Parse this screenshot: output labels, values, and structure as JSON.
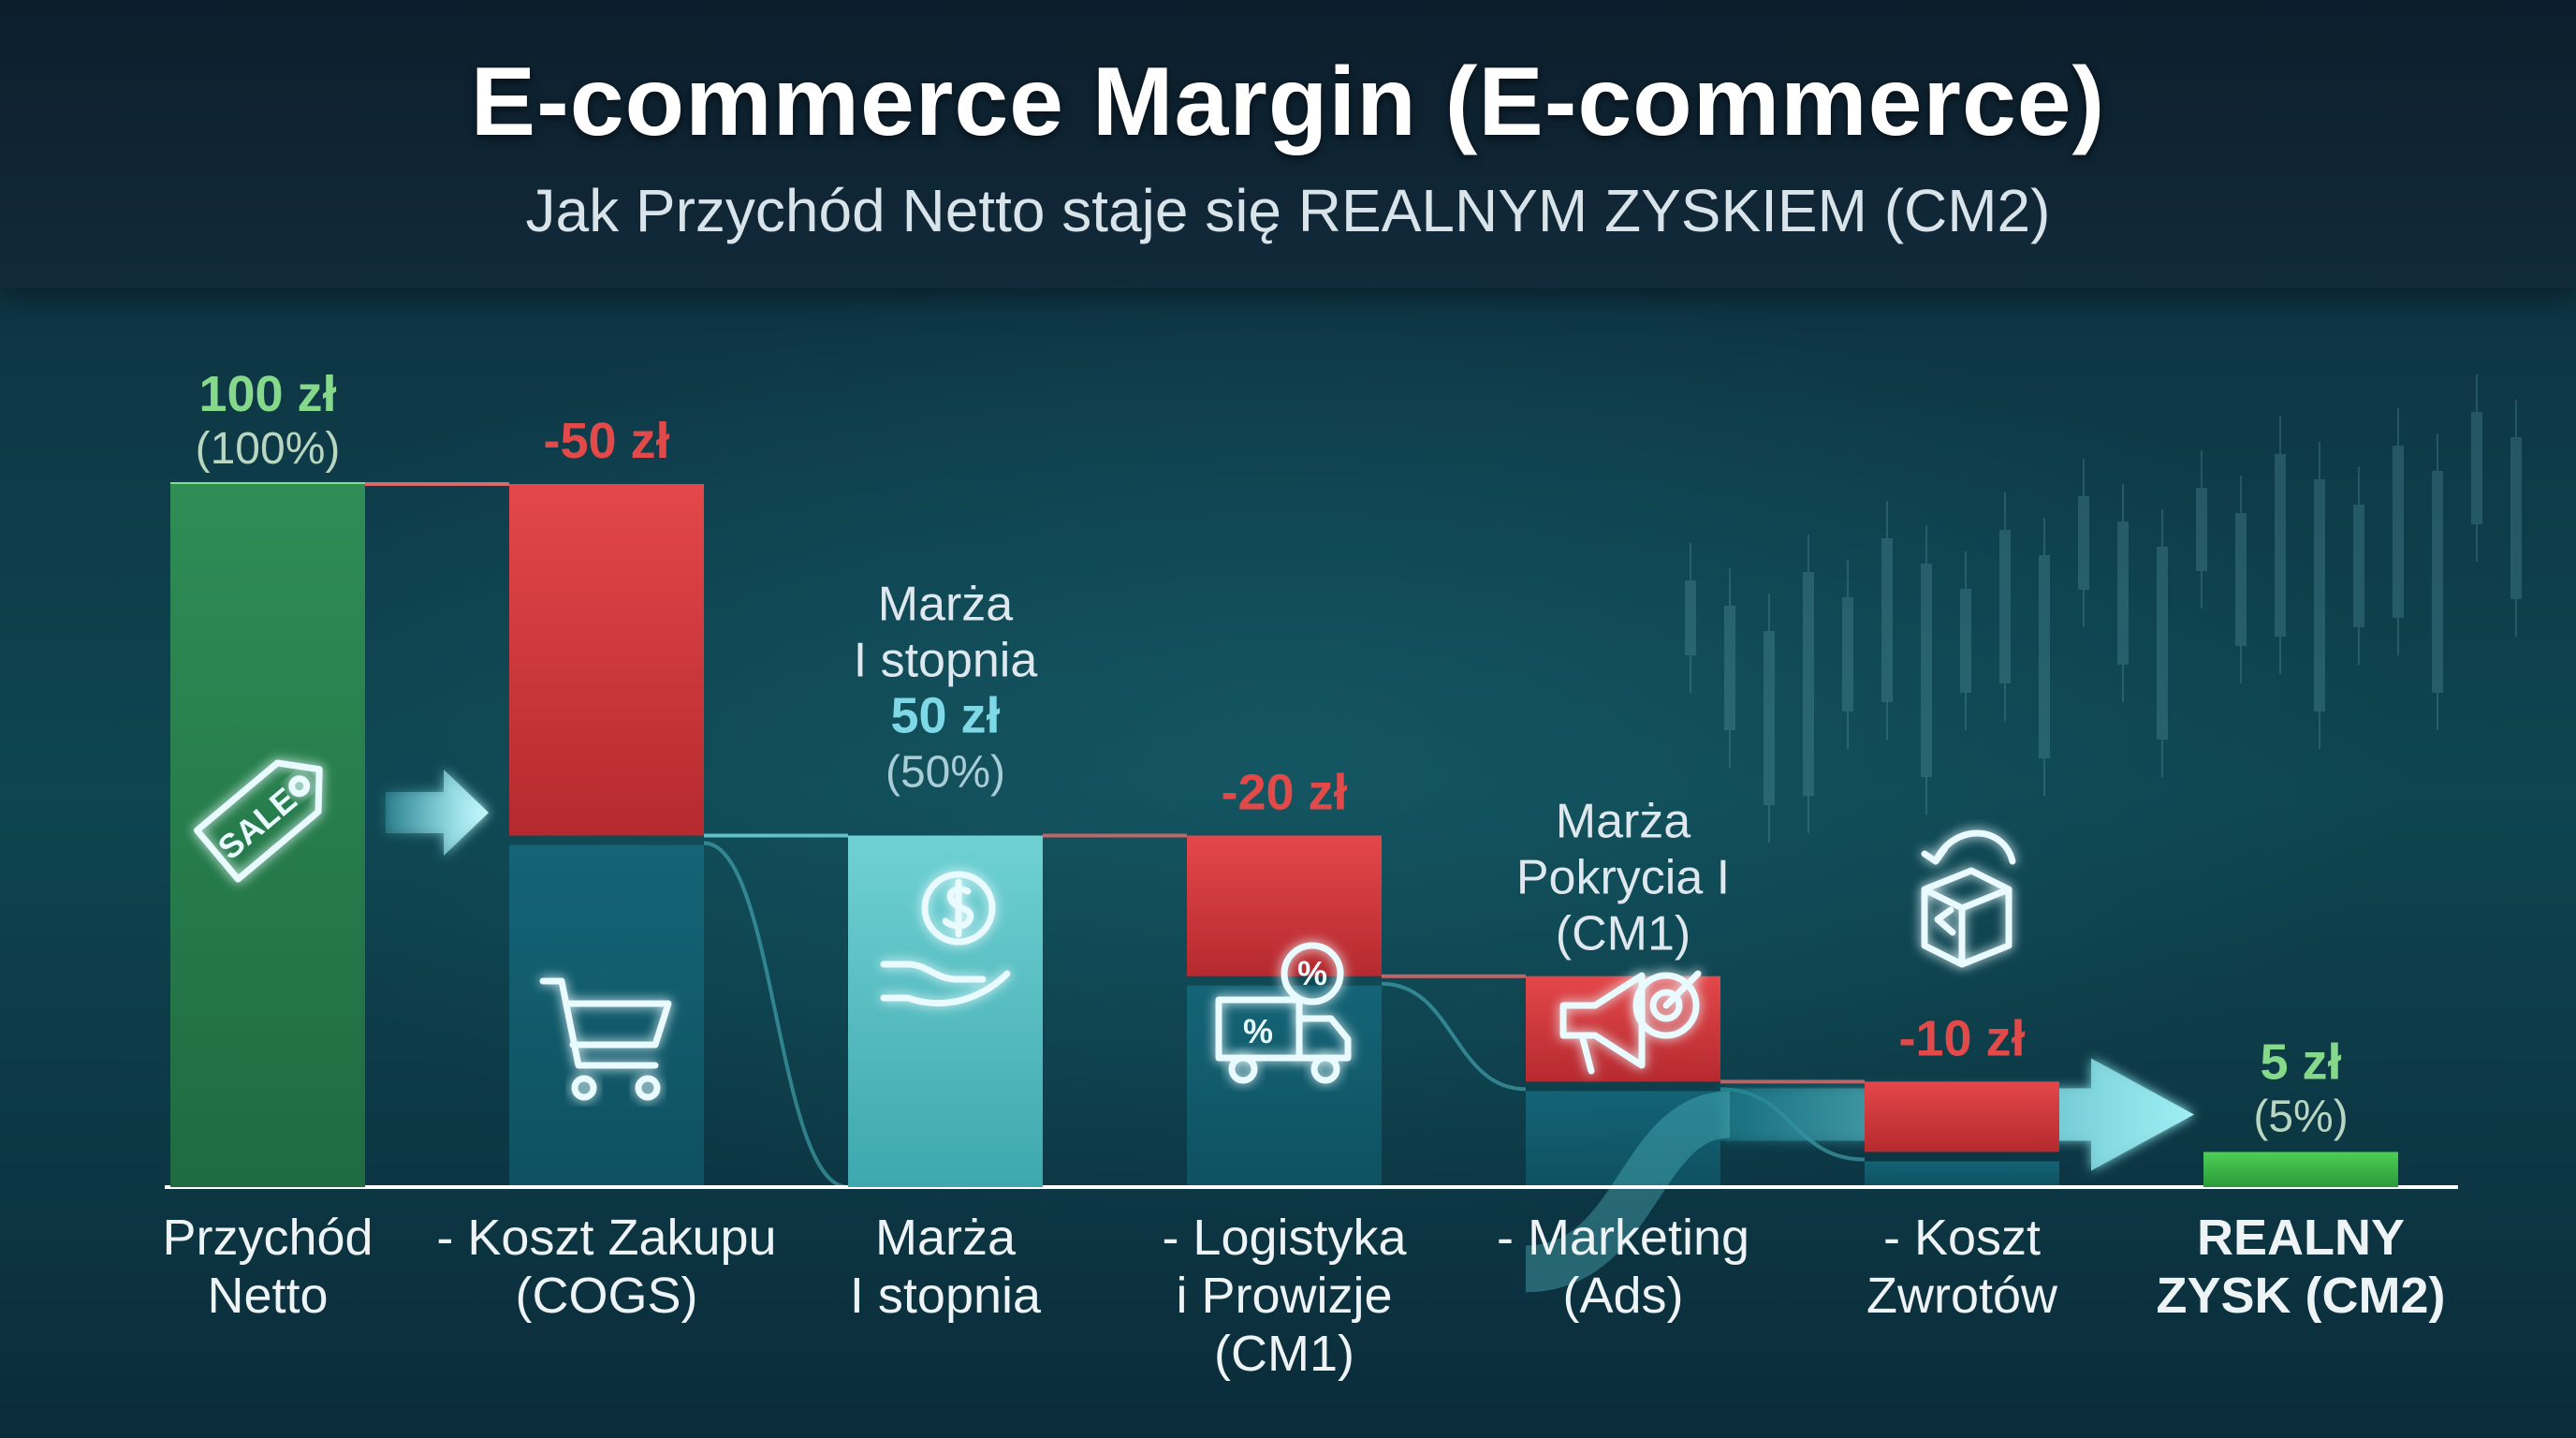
{
  "header": {
    "title": "E-commerce Margin (E-commerce)",
    "subtitle": "Jak Przychód Netto staje się REALNYM ZYSKIEM (CM2)"
  },
  "chart_data": {
    "type": "bar",
    "title": "E-commerce Margin (E-commerce)",
    "subtitle": "Jak Przychód Netto staje się REALNYM ZYSKIEM (CM2)",
    "ylim": [
      0,
      100
    ],
    "grid": false,
    "unit": "zł",
    "steps": [
      {
        "category": [
          "Przychód",
          "Netto"
        ],
        "kind": "total",
        "start": 0,
        "end": 100,
        "value_label": "100 zł",
        "pct_label": "(100%)",
        "color": "#2e8a52",
        "icon": "sale-tag-icon"
      },
      {
        "category": [
          "- Koszt Zakupu",
          "(COGS)"
        ],
        "kind": "decrease",
        "start": 100,
        "end": 50,
        "value_label": "-50 zł",
        "color": "#d63a3d",
        "icon": "shopping-cart-icon"
      },
      {
        "category": [
          "Marża",
          "I stopnia"
        ],
        "kind": "subtotal",
        "start": 0,
        "end": 50,
        "name_lines": [
          "Marża",
          "I stopnia"
        ],
        "value_label": "50 zł",
        "pct_label": "(50%)",
        "color": "#5fc8cc",
        "icon": "hand-coin-icon"
      },
      {
        "category": [
          "- Logistyka",
          "i Prowizje",
          "(CM1)"
        ],
        "kind": "decrease",
        "start": 50,
        "end": 30,
        "value_label": "-20 zł",
        "color": "#d63a3d",
        "icon": "delivery-truck-icon"
      },
      {
        "category": [
          "- Marketing",
          "(Ads)"
        ],
        "kind": "decrease",
        "start": 30,
        "end": 15,
        "name_lines": [
          "Marża",
          "Pokrycia I",
          "(CM1)"
        ],
        "color": "#d63a3d",
        "icon": "megaphone-icon"
      },
      {
        "category": [
          "- Koszt",
          "Zwrotów"
        ],
        "kind": "decrease",
        "start": 15,
        "end": 5,
        "value_label": "-10 zł",
        "color": "#d63a3d",
        "icon": "return-box-icon"
      },
      {
        "category": [
          "REALNY",
          "ZYSK (CM2)"
        ],
        "kind": "total",
        "start": 0,
        "end": 5,
        "value_label": "5 zł",
        "pct_label": "(5%)",
        "color": "#3cb54a",
        "highlight": true
      }
    ],
    "colors": {
      "positive": "#86d98a",
      "negative": "#e24a4a",
      "subtotal_text": "#7fd8e6",
      "label": "#dfe8ee"
    }
  }
}
